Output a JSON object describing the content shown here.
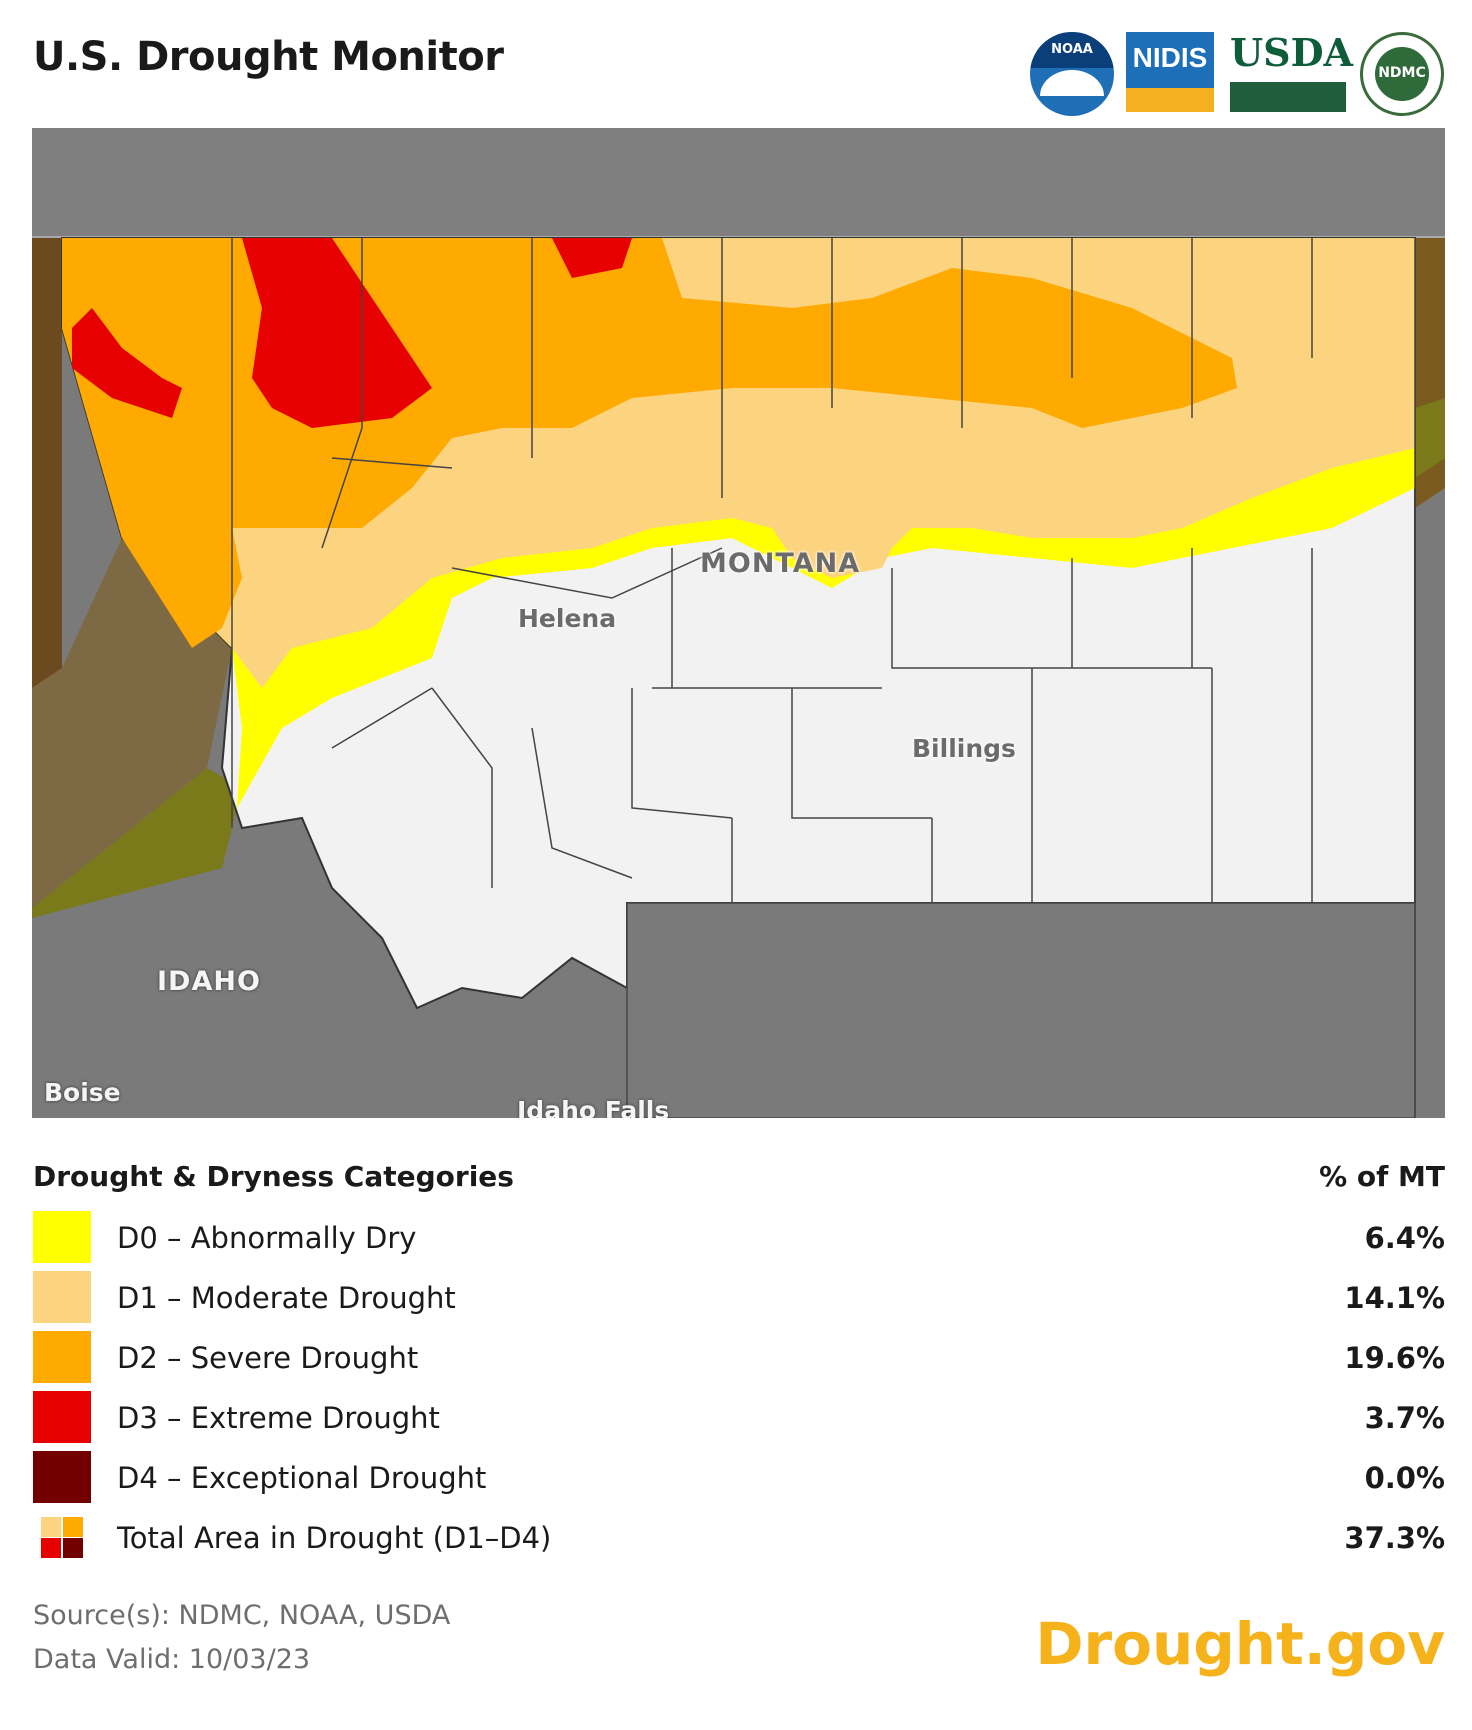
{
  "title": "U.S. Drought Monitor",
  "logos": {
    "noaa": "NOAA",
    "nidis": "NIDIS",
    "usda": "USDA",
    "ndmc": "NDMC"
  },
  "map": {
    "labels": {
      "state": "MONTANA",
      "neighbor": "IDAHO",
      "city1": "Helena",
      "city2": "Billings",
      "city3": "Boise",
      "city4": "Idaho Falls"
    },
    "colors": {
      "background": "#7a7a7a",
      "no_drought": "#f2f2f2",
      "d0": "#ffff00",
      "d1": "#fcd37f",
      "d2": "#ffaa00",
      "d3": "#e60000",
      "d4": "#730000"
    }
  },
  "legend": {
    "heading": "Drought & Dryness Categories",
    "pct_heading": "% of MT",
    "rows": [
      {
        "label": "D0 – Abnormally Dry",
        "value": "6.4%",
        "color": "#ffff00"
      },
      {
        "label": "D1 – Moderate Drought",
        "value": "14.1%",
        "color": "#fcd37f"
      },
      {
        "label": "D2 – Severe Drought",
        "value": "19.6%",
        "color": "#ffaa00"
      },
      {
        "label": "D3 – Extreme Drought",
        "value": "3.7%",
        "color": "#e60000"
      },
      {
        "label": "D4 – Exceptional Drought",
        "value": "0.0%",
        "color": "#730000"
      }
    ],
    "total": {
      "label": "Total Area in Drought (D1–D4)",
      "value": "37.3%"
    }
  },
  "footer": {
    "source": "Source(s): NDMC, NOAA, USDA",
    "valid": "Data Valid: 10/03/23",
    "brand": "Drought.gov"
  }
}
